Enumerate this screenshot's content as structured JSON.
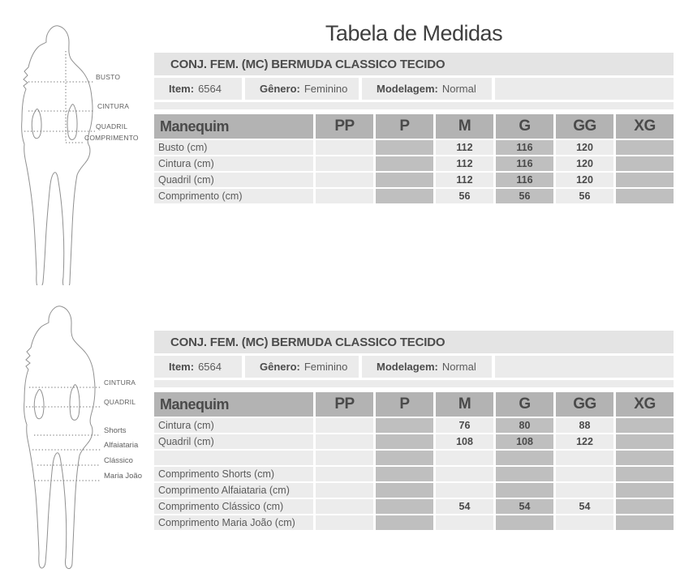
{
  "title": "Tabela de Medidas",
  "colors": {
    "product_bar": "#e4e4e4",
    "info_row": "#ebebeb",
    "header_row": "#b3b3b3",
    "cell_light": "#ececec",
    "cell_dark": "#bfbfbf"
  },
  "figures": [
    {
      "labels": [
        "BUSTO",
        "CINTURA",
        "QUADRIL",
        "COMPRIMENTO"
      ]
    },
    {
      "labels": [
        "CINTURA",
        "QUADRIL",
        "Shorts",
        "Alfaiataria",
        "Clássico",
        "Maria João"
      ]
    }
  ],
  "tables": [
    {
      "product": "CONJ. FEM. (MC) BERMUDA CLASSICO TECIDO",
      "info": [
        {
          "label": "Item:",
          "value": "6564"
        },
        {
          "label": "Gênero:",
          "value": "Feminino"
        },
        {
          "label": "Modelagem:",
          "value": "Normal"
        }
      ],
      "columns": [
        "Manequim",
        "PP",
        "P",
        "M",
        "G",
        "GG",
        "XG"
      ],
      "rows": [
        {
          "label": "Busto (cm)",
          "values": [
            "",
            "",
            "112",
            "116",
            "120",
            ""
          ]
        },
        {
          "label": "Cintura (cm)",
          "values": [
            "",
            "",
            "112",
            "116",
            "120",
            ""
          ]
        },
        {
          "label": "Quadril (cm)",
          "values": [
            "",
            "",
            "112",
            "116",
            "120",
            ""
          ]
        },
        {
          "label": "Comprimento (cm)",
          "values": [
            "",
            "",
            "56",
            "56",
            "56",
            ""
          ]
        }
      ]
    },
    {
      "product": "CONJ. FEM. (MC) BERMUDA CLASSICO TECIDO",
      "info": [
        {
          "label": "Item:",
          "value": "6564"
        },
        {
          "label": "Gênero:",
          "value": "Feminino"
        },
        {
          "label": "Modelagem:",
          "value": "Normal"
        }
      ],
      "columns": [
        "Manequim",
        "PP",
        "P",
        "M",
        "G",
        "GG",
        "XG"
      ],
      "rows": [
        {
          "label": "Cintura (cm)",
          "values": [
            "",
            "",
            "76",
            "80",
            "88",
            ""
          ]
        },
        {
          "label": "Quadril (cm)",
          "values": [
            "",
            "",
            "108",
            "108",
            "122",
            ""
          ]
        },
        {
          "label": "",
          "values": [
            "",
            "",
            "",
            "",
            "",
            ""
          ]
        },
        {
          "label": "Comprimento Shorts (cm)",
          "values": [
            "",
            "",
            "",
            "",
            "",
            ""
          ]
        },
        {
          "label": "Comprimento Alfaiataria (cm)",
          "values": [
            "",
            "",
            "",
            "",
            "",
            ""
          ]
        },
        {
          "label": "Comprimento Clássico (cm)",
          "values": [
            "",
            "",
            "54",
            "54",
            "54",
            ""
          ]
        },
        {
          "label": "Comprimento Maria João (cm)",
          "values": [
            "",
            "",
            "",
            "",
            "",
            ""
          ]
        }
      ]
    }
  ]
}
